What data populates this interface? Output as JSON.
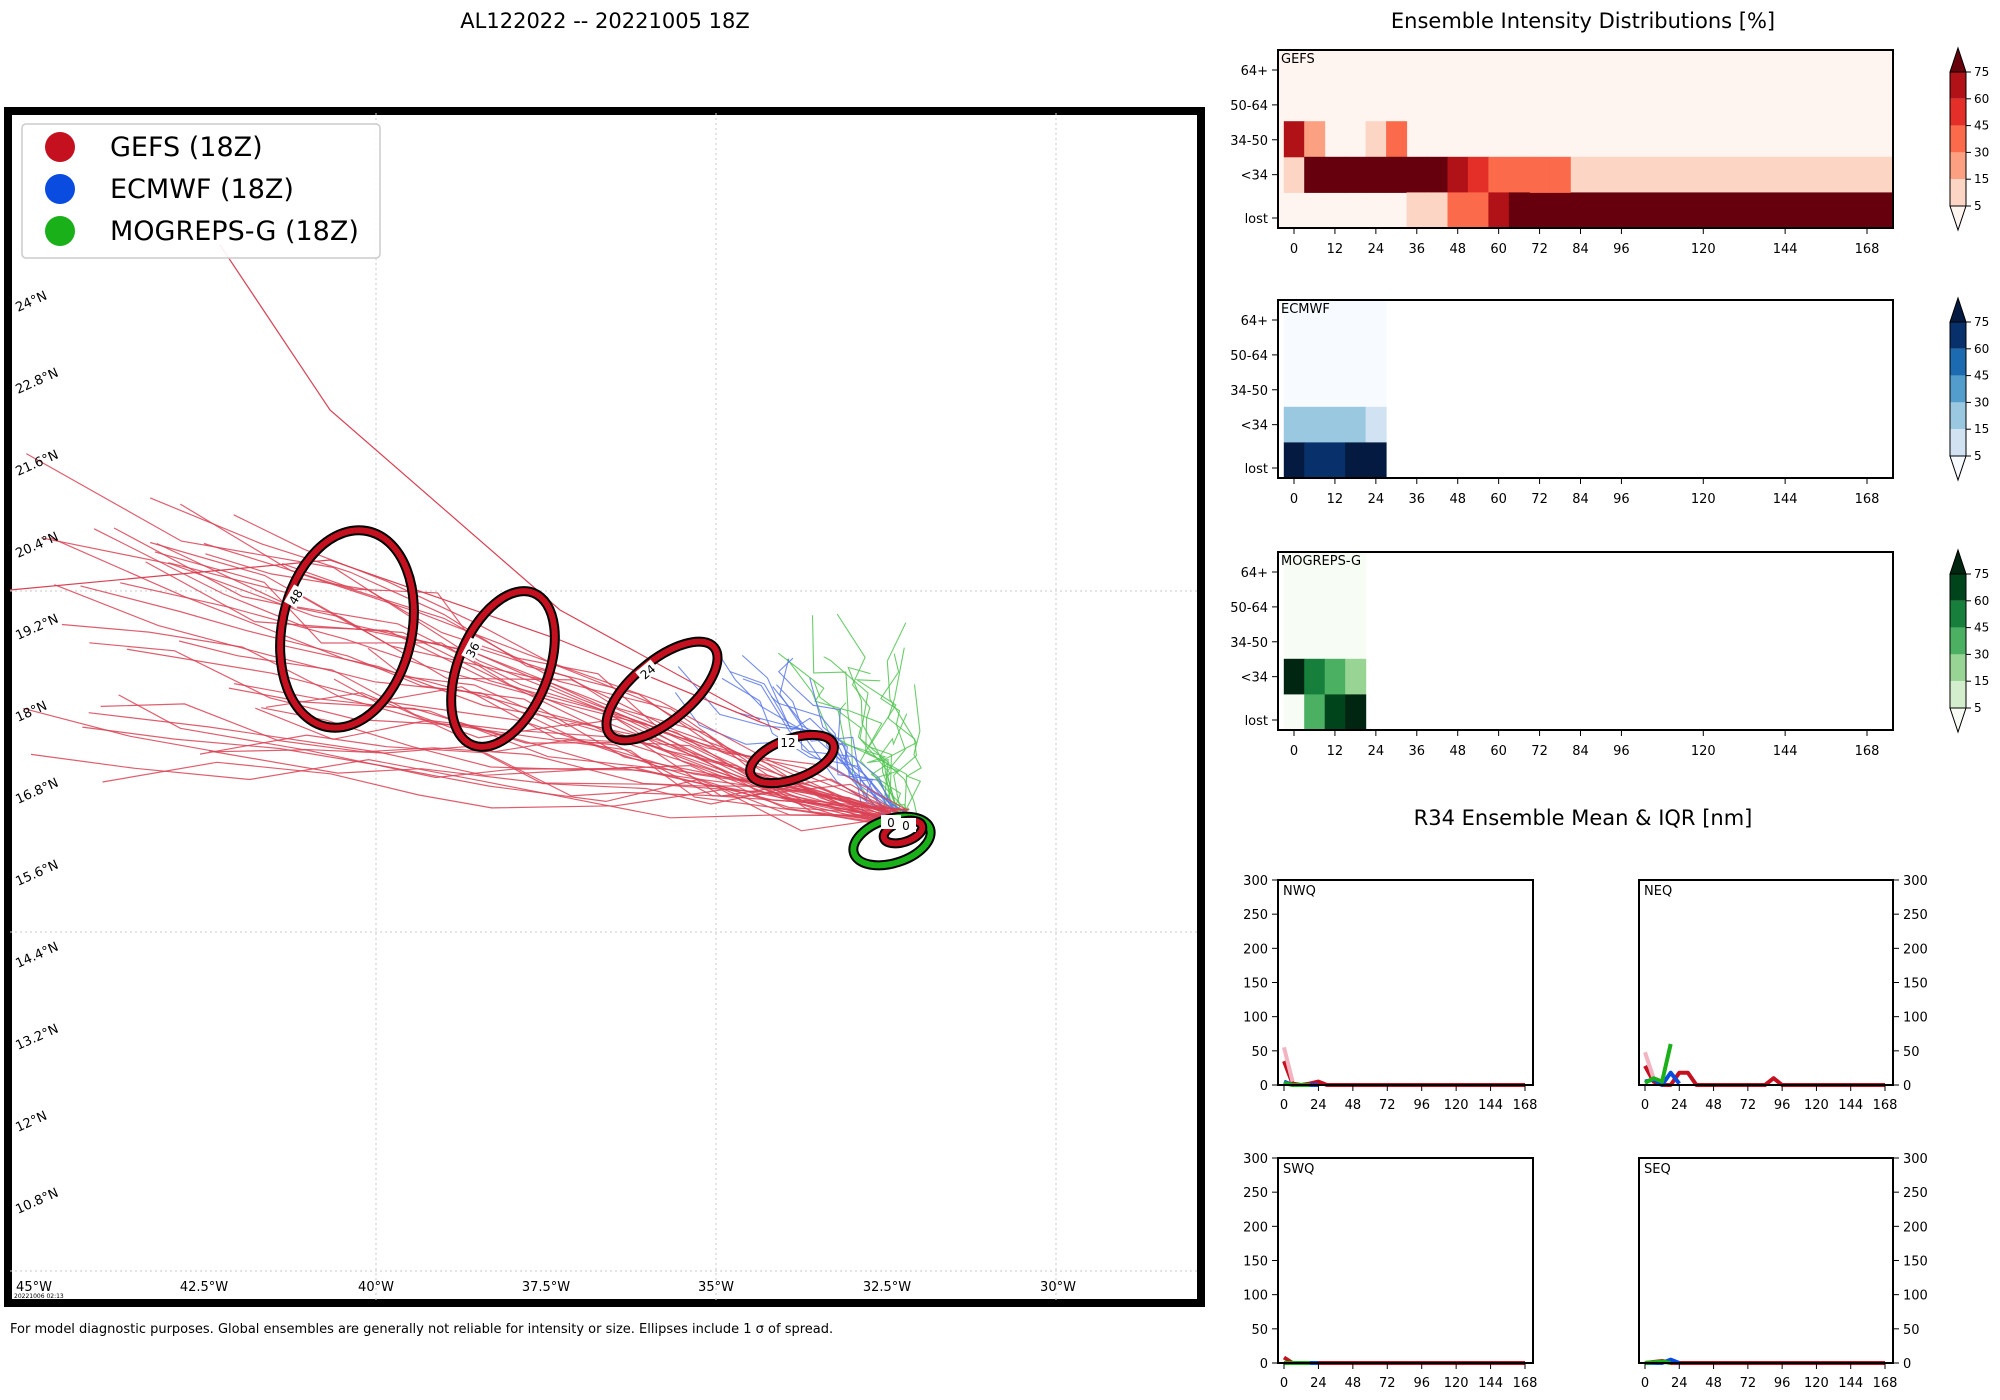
{
  "colors": {
    "gefs": "#c4101f",
    "gefs_track": "#d94255",
    "ecmwf": "#0a4be0",
    "ecmwf_track": "#5a78e6",
    "mogreps": "#1ab01a",
    "mogreps_track": "#52c452",
    "grid": "#c8c8c8"
  },
  "map": {
    "title": "AL122022 -- 20221005 18Z",
    "legend": [
      {
        "label": "GEFS (18Z)",
        "color": "#c4101f"
      },
      {
        "label": "ECMWF (18Z)",
        "color": "#0a4be0"
      },
      {
        "label": "MOGREPS-G (18Z)",
        "color": "#1ab01a"
      }
    ],
    "lat_labels": [
      "24°N",
      "22.8°N",
      "21.6°N",
      "20.4°N",
      "19.2°N",
      "18°N",
      "16.8°N",
      "15.6°N",
      "14.4°N",
      "13.2°N",
      "12°N",
      "10.8°N"
    ],
    "lon_labels": [
      "45°W",
      "42.5°W",
      "40°W",
      "37.5°W",
      "35°W",
      "32.5°W",
      "30°W"
    ],
    "ellipse_labels": [
      "48",
      "36",
      "24",
      "12",
      "0",
      "0"
    ],
    "timestamp": "20221006 02:13",
    "footnote": "For model diagnostic purposes. Global ensembles are generally not reliable for intensity or size. Ellipses include 1 σ of spread."
  },
  "chart_data": [
    {
      "type": "heatmap",
      "title": "Ensemble Intensity Distributions [%]",
      "panel": "GEFS",
      "x_ticks": [
        0,
        12,
        24,
        36,
        48,
        60,
        72,
        84,
        96,
        120,
        144,
        168
      ],
      "y_labels": [
        "64+",
        "50-64",
        "34-50",
        "<34",
        "lost"
      ],
      "colorbar_ticks": [
        5,
        15,
        30,
        45,
        60,
        75
      ],
      "cells": [
        [
          "<34",
          0,
          10
        ],
        [
          "34-50",
          0,
          65
        ],
        [
          "34-50",
          6,
          18
        ],
        [
          "34-50",
          24,
          12
        ],
        [
          "34-50",
          30,
          30
        ],
        [
          "<34",
          6,
          90
        ],
        [
          "<34",
          12,
          90
        ],
        [
          "<34",
          18,
          90
        ],
        [
          "<34",
          24,
          90
        ],
        [
          "<34",
          30,
          90
        ],
        [
          "<34",
          36,
          90
        ],
        [
          "<34",
          42,
          90
        ],
        [
          "<34",
          48,
          70
        ],
        [
          "<34",
          54,
          50
        ],
        [
          "<34",
          60,
          40
        ],
        [
          "<34",
          66,
          30
        ],
        [
          "<34",
          72,
          30
        ],
        [
          "<34",
          78,
          30
        ],
        [
          "lost",
          36,
          10
        ],
        [
          "lost",
          42,
          10
        ],
        [
          "lost",
          48,
          40
        ],
        [
          "lost",
          54,
          40
        ],
        [
          "lost",
          60,
          60
        ],
        [
          "lost",
          66,
          90
        ]
      ]
    },
    {
      "type": "heatmap",
      "panel": "ECMWF",
      "x_ticks": [
        0,
        12,
        24,
        36,
        48,
        60,
        72,
        84,
        96,
        120,
        144,
        168
      ],
      "y_labels": [
        "64+",
        "50-64",
        "34-50",
        "<34",
        "lost"
      ],
      "colorbar_ticks": [
        5,
        15,
        30,
        45,
        60,
        75
      ],
      "cells": [
        [
          "64+",
          0,
          3
        ],
        [
          "64+",
          6,
          3
        ],
        [
          "64+",
          12,
          3
        ],
        [
          "64+",
          18,
          3
        ],
        [
          "64+",
          24,
          3
        ],
        [
          "50-64",
          0,
          3
        ],
        [
          "50-64",
          6,
          3
        ],
        [
          "50-64",
          12,
          3
        ],
        [
          "50-64",
          18,
          3
        ],
        [
          "50-64",
          24,
          3
        ],
        [
          "34-50",
          0,
          3
        ],
        [
          "34-50",
          6,
          3
        ],
        [
          "34-50",
          12,
          3
        ],
        [
          "34-50",
          18,
          3
        ],
        [
          "34-50",
          24,
          3
        ],
        [
          "<34",
          0,
          25
        ],
        [
          "<34",
          6,
          25
        ],
        [
          "<34",
          12,
          25
        ],
        [
          "<34",
          18,
          25
        ],
        [
          "<34",
          24,
          12
        ],
        [
          "lost",
          0,
          75
        ],
        [
          "lost",
          6,
          60
        ],
        [
          "lost",
          12,
          60
        ],
        [
          "lost",
          18,
          75
        ],
        [
          "lost",
          24,
          75
        ]
      ]
    },
    {
      "type": "heatmap",
      "panel": "MOGREPS-G",
      "x_ticks": [
        0,
        12,
        24,
        36,
        48,
        60,
        72,
        84,
        96,
        120,
        144,
        168
      ],
      "y_labels": [
        "64+",
        "50-64",
        "34-50",
        "<34",
        "lost"
      ],
      "colorbar_ticks": [
        5,
        15,
        30,
        45,
        60,
        75
      ],
      "cells": [
        [
          "64+",
          0,
          3
        ],
        [
          "64+",
          6,
          3
        ],
        [
          "64+",
          12,
          3
        ],
        [
          "64+",
          18,
          3
        ],
        [
          "50-64",
          0,
          3
        ],
        [
          "50-64",
          6,
          3
        ],
        [
          "50-64",
          12,
          3
        ],
        [
          "50-64",
          18,
          3
        ],
        [
          "34-50",
          0,
          3
        ],
        [
          "34-50",
          6,
          3
        ],
        [
          "34-50",
          12,
          3
        ],
        [
          "34-50",
          18,
          3
        ],
        [
          "<34",
          0,
          75
        ],
        [
          "<34",
          6,
          45
        ],
        [
          "<34",
          12,
          35
        ],
        [
          "<34",
          18,
          15
        ],
        [
          "lost",
          0,
          3
        ],
        [
          "lost",
          6,
          40
        ],
        [
          "lost",
          12,
          65
        ],
        [
          "lost",
          18,
          80
        ]
      ]
    },
    {
      "type": "line",
      "title": "R34 Ensemble Mean & IQR [nm]",
      "x_ticks": [
        0,
        24,
        48,
        72,
        96,
        120,
        144,
        168
      ],
      "ylim": [
        0,
        300
      ],
      "y_ticks": [
        0,
        50,
        100,
        150,
        200,
        250,
        300
      ],
      "panels": [
        {
          "name": "NWQ",
          "axis_side": "left",
          "series": [
            {
              "model": "GEFS",
              "x": [
                0,
                6,
                12,
                18,
                24,
                30,
                36,
                168
              ],
              "y": [
                35,
                2,
                0,
                2,
                5,
                0,
                0,
                0
              ]
            },
            {
              "model": "GEFS IQR",
              "x": [
                0,
                6
              ],
              "y": [
                55,
                5
              ]
            },
            {
              "model": "ECMWF",
              "x": [
                0,
                6,
                12,
                18,
                24
              ],
              "y": [
                5,
                0,
                0,
                0,
                0
              ]
            },
            {
              "model": "MOGREPS-G",
              "x": [
                0,
                6,
                12,
                18
              ],
              "y": [
                3,
                0,
                0,
                0
              ]
            }
          ]
        },
        {
          "name": "NEQ",
          "axis_side": "right",
          "series": [
            {
              "model": "GEFS",
              "x": [
                0,
                6,
                12,
                18,
                24,
                30,
                36,
                48,
                60,
                72,
                84,
                90,
                96,
                168
              ],
              "y": [
                28,
                5,
                0,
                0,
                18,
                18,
                0,
                0,
                0,
                0,
                0,
                10,
                0,
                0
              ]
            },
            {
              "model": "GEFS IQR",
              "x": [
                0,
                6
              ],
              "y": [
                48,
                10
              ]
            },
            {
              "model": "ECMWF",
              "x": [
                0,
                6,
                12,
                18,
                24
              ],
              "y": [
                5,
                8,
                0,
                18,
                2
              ]
            },
            {
              "model": "MOGREPS-G",
              "x": [
                0,
                6,
                12,
                18
              ],
              "y": [
                3,
                10,
                5,
                60
              ]
            }
          ]
        },
        {
          "name": "SWQ",
          "axis_side": "left",
          "series": [
            {
              "model": "GEFS",
              "x": [
                0,
                6,
                12,
                168
              ],
              "y": [
                8,
                0,
                0,
                0
              ]
            },
            {
              "model": "ECMWF",
              "x": [
                0,
                24
              ],
              "y": [
                0,
                0
              ]
            },
            {
              "model": "MOGREPS-G",
              "x": [
                0,
                18
              ],
              "y": [
                0,
                0
              ]
            }
          ]
        },
        {
          "name": "SEQ",
          "axis_side": "right",
          "series": [
            {
              "model": "GEFS",
              "x": [
                0,
                12,
                18,
                24,
                168
              ],
              "y": [
                0,
                3,
                0,
                0,
                0
              ]
            },
            {
              "model": "ECMWF",
              "x": [
                0,
                12,
                18,
                24
              ],
              "y": [
                0,
                0,
                5,
                0
              ]
            },
            {
              "model": "MOGREPS-G",
              "x": [
                0,
                12,
                18
              ],
              "y": [
                0,
                2,
                0
              ]
            }
          ]
        }
      ]
    }
  ]
}
